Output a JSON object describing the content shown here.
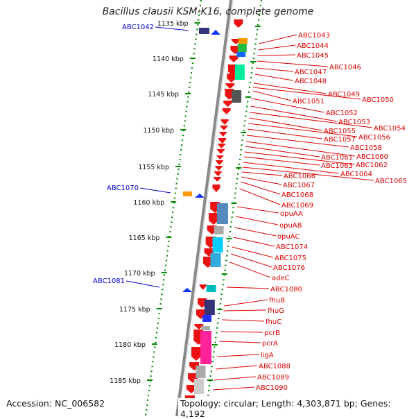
{
  "title": "Bacillus clausii KSM-K16, complete genome",
  "accession": "Accession: NC_006582",
  "topology": "Topology: circular; Length: 4,303,871 bp; Genes: 4,192",
  "colors": {
    "gene_arrow": "#ee1111",
    "label_red": "#dd0000",
    "label_blue": "#0000cc",
    "tick_green": "#008800",
    "backbone": "#888888"
  },
  "scale": {
    "unit": "kbp",
    "ticks": [
      {
        "label": "1135 kbp"
      },
      {
        "label": "1140 kbp"
      },
      {
        "label": "1145 kbp"
      },
      {
        "label": "1150 kbp"
      },
      {
        "label": "1155 kbp"
      },
      {
        "label": "1160 kbp"
      },
      {
        "label": "1165 kbp"
      },
      {
        "label": "1170 kbp"
      },
      {
        "label": "1175 kbp"
      },
      {
        "label": "1180 kbp"
      },
      {
        "label": "1185 kbp"
      }
    ]
  },
  "left_genes": [
    "ABC1042",
    "ABC1070",
    "ABC1081"
  ],
  "right_genes": [
    "ABC1043",
    "ABC1044",
    "ABC1045",
    "ABC1046",
    "ABC1047",
    "ABC1048",
    "ABC1049",
    "ABC1050",
    "ABC1051",
    "ABC1052",
    "ABC1053",
    "ABC1054",
    "ABC1055",
    "ABC1056",
    "ABC1057",
    "ABC1058",
    "ABC1060",
    "ABC1061",
    "ABC1062",
    "ABC1063",
    "ABC1064",
    "ABC1065",
    "ABC1066",
    "ABC1067",
    "ABC1068",
    "ABC1069",
    "opuAA",
    "opuAB",
    "opuAC",
    "ABC1074",
    "ABC1075",
    "ABC1076",
    "adeC",
    "ABC1080",
    "fhuB",
    "fhuG",
    "fhuC",
    "pcrB",
    "pcrA",
    "ligA",
    "ABC1088",
    "ABC1089",
    "ABC1090"
  ]
}
